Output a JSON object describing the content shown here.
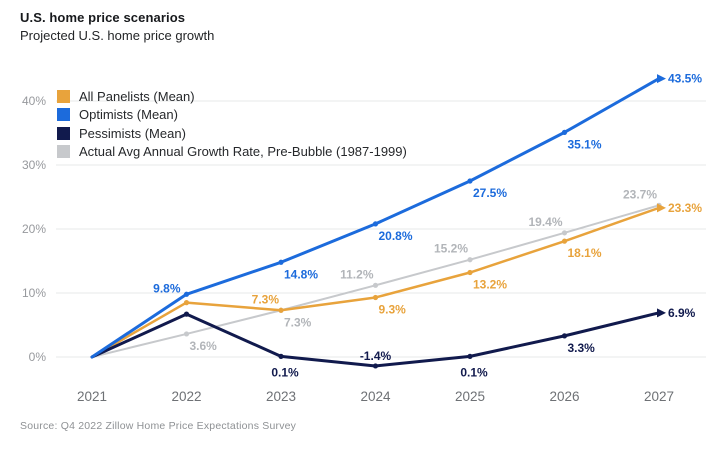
{
  "header": {
    "title": "U.S. home price scenarios",
    "subtitle": "Projected U.S. home price growth"
  },
  "source_note": "Source: Q4 2022 Zillow Home Price Expectations Survey",
  "chart_data": {
    "type": "line",
    "title": "U.S. home price scenarios",
    "subtitle": "Projected U.S. home price growth",
    "x_labels": [
      "2021",
      "2022",
      "2023",
      "2024",
      "2025",
      "2026",
      "2027"
    ],
    "y_ticks": [
      "0%",
      "10%",
      "20%",
      "30%",
      "40%"
    ],
    "ylim": [
      -5,
      45
    ],
    "grid": "horizontal",
    "legend_position": "top-left-inside",
    "axis_colors": {
      "y_tick": "#97999d",
      "x_tick": "#6e7175",
      "gridline": "#e7e8ea"
    },
    "series": [
      {
        "id": "all-panelists",
        "name": "All Panelists (Mean)",
        "color": "#E8A33C",
        "width": 2.5,
        "arrow": true,
        "values": [
          0,
          8.5,
          7.3,
          9.3,
          13.2,
          18.1,
          23.3
        ],
        "labels": [
          null,
          null,
          "7.3%",
          "9.3%",
          "13.2%",
          "18.1%",
          "23.3%"
        ],
        "label_pos": [
          null,
          null,
          "above-left",
          "below-right",
          "below-right",
          "below-right",
          "right"
        ]
      },
      {
        "id": "optimists",
        "name": "Optimists (Mean)",
        "color": "#1C6BDC",
        "width": 3,
        "arrow": true,
        "values": [
          0,
          9.8,
          14.8,
          20.8,
          27.5,
          35.1,
          43.5
        ],
        "labels": [
          null,
          "9.8%",
          "14.8%",
          "20.8%",
          "27.5%",
          "35.1%",
          "43.5%"
        ],
        "label_pos": [
          null,
          "left",
          "below-right",
          "below-right",
          "below-right",
          "below-right",
          "right"
        ]
      },
      {
        "id": "pessimists",
        "name": "Pessimists (Mean)",
        "color": "#111A4D",
        "width": 3,
        "arrow": true,
        "values": [
          0,
          6.7,
          0.1,
          -1.4,
          0.1,
          3.3,
          6.9
        ],
        "labels": [
          null,
          null,
          "0.1%",
          "-1.4%",
          "0.1%",
          "3.3%",
          "6.9%"
        ],
        "label_pos": [
          null,
          null,
          "below",
          "above",
          "below",
          "below-right",
          "right"
        ]
      },
      {
        "id": "actual-avg",
        "name": "Actual Avg Annual Growth Rate, Pre-Bubble (1987-1999)",
        "color": "#C7C9CC",
        "width": 2,
        "arrow": false,
        "label_color": "#B2B5B9",
        "values": [
          0,
          3.6,
          7.3,
          11.2,
          15.2,
          19.4,
          23.7
        ],
        "labels": [
          null,
          "3.6%",
          "7.3%",
          "11.2%",
          "15.2%",
          "19.4%",
          "23.7%"
        ],
        "label_pos": [
          null,
          "below-right",
          "below-right",
          "above-left",
          "above-left",
          "above-left",
          "above-left"
        ]
      }
    ],
    "draw_order": [
      3,
      0,
      2,
      1
    ]
  }
}
